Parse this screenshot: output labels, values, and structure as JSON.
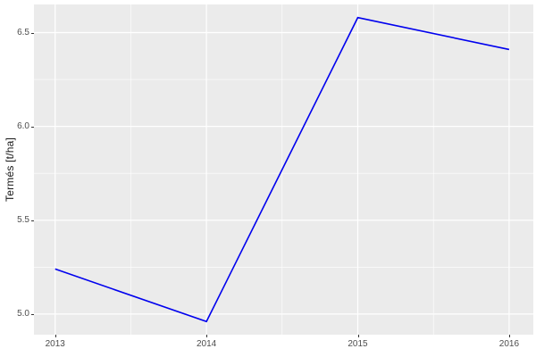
{
  "chart_data": {
    "type": "line",
    "title": "",
    "xlabel": "",
    "ylabel": "Termés [t/ha]",
    "x": [
      2013,
      2014,
      2015,
      2016
    ],
    "values": [
      5.24,
      4.96,
      6.58,
      6.41
    ],
    "x_major_ticks": [
      2013,
      2014,
      2015,
      2016
    ],
    "x_tick_labels": [
      "2013",
      "2014",
      "2015",
      "2016"
    ],
    "y_major_ticks": [
      5.0,
      5.5,
      6.0,
      6.5
    ],
    "y_tick_labels": [
      "5.0",
      "5.5",
      "6.0",
      "6.5"
    ],
    "x_minor_ticks": [
      2013.5,
      2014.5,
      2015.5
    ],
    "y_minor_ticks": [
      5.25,
      5.75,
      6.25
    ],
    "xlim": [
      2012.86,
      2016.16
    ],
    "ylim": [
      4.89,
      6.65
    ],
    "grid": true,
    "legend": "none",
    "colors": {
      "line": "#0000EE",
      "panel_background": "#EBEBEB",
      "plot_background": "#FFFFFF",
      "gridline_major": "#FFFFFF",
      "gridline_minor": "#FFFFFF",
      "tick_label": "#4D4D4D",
      "axis_title": "#1A1A1A",
      "tick_mark": "#333333"
    }
  }
}
